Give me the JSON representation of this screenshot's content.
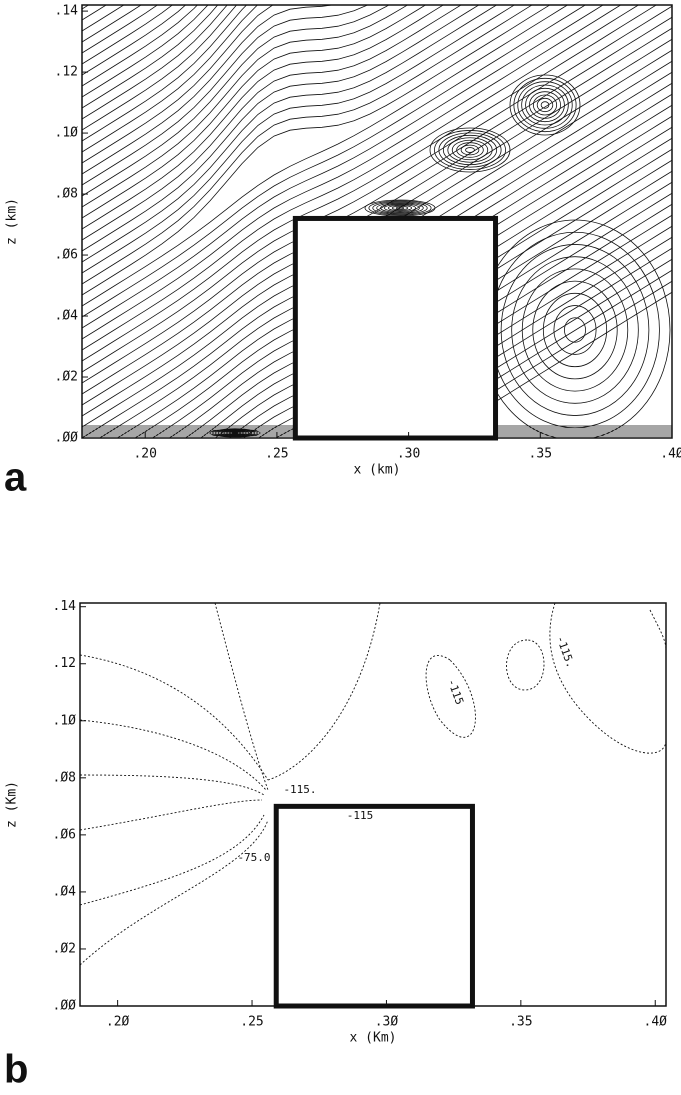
{
  "chart_data": [
    {
      "type": "streamline",
      "panel": "a",
      "xlabel": "x (km)",
      "ylabel": "z (km)",
      "xlim": [
        0.176,
        0.4
      ],
      "ylim": [
        0,
        0.142
      ],
      "xticks": [
        {
          "value": 0.2,
          "label": ".20"
        },
        {
          "value": 0.25,
          "label": ".25"
        },
        {
          "value": 0.3,
          "label": ".30"
        },
        {
          "value": 0.35,
          "label": ".35"
        },
        {
          "value": 0.4,
          "label": ".4Ø"
        }
      ],
      "yticks": [
        {
          "value": 0,
          "label": ".ØØ"
        },
        {
          "value": 0.02,
          "label": ".Ø2"
        },
        {
          "value": 0.04,
          "label": ".Ø4"
        },
        {
          "value": 0.06,
          "label": ".Ø6"
        },
        {
          "value": 0.08,
          "label": ".Ø8"
        },
        {
          "value": 0.1,
          "label": ".1Ø"
        },
        {
          "value": 0.12,
          "label": ".12"
        },
        {
          "value": 0.14,
          "label": ".14"
        }
      ],
      "building": {
        "x": [
          0.257,
          0.333
        ],
        "z": [
          0,
          0.072
        ]
      }
    },
    {
      "type": "contour",
      "panel": "b",
      "xlabel": "x (Km)",
      "ylabel": "z (Km)",
      "xlim": [
        0.186,
        0.404
      ],
      "ylim": [
        0,
        0.1413
      ],
      "xticks": [
        {
          "value": 0.2,
          "label": ".2Ø"
        },
        {
          "value": 0.25,
          "label": ".25"
        },
        {
          "value": 0.3,
          "label": ".3Ø"
        },
        {
          "value": 0.35,
          "label": ".35"
        },
        {
          "value": 0.4,
          "label": ".4Ø"
        }
      ],
      "yticks": [
        {
          "value": 0,
          "label": ".ØØ"
        },
        {
          "value": 0.02,
          "label": ".Ø2"
        },
        {
          "value": 0.04,
          "label": ".Ø4"
        },
        {
          "value": 0.06,
          "label": ".Ø6"
        },
        {
          "value": 0.08,
          "label": ".Ø8"
        },
        {
          "value": 0.1,
          "label": ".1Ø"
        },
        {
          "value": 0.12,
          "label": ".12"
        },
        {
          "value": 0.14,
          "label": ".14"
        }
      ],
      "building": {
        "x": [
          0.259,
          0.332
        ],
        "z": [
          0,
          0.07
        ]
      },
      "annotations": [
        "-115.",
        "-75.0",
        "-115",
        "-115",
        "-115."
      ]
    }
  ]
}
